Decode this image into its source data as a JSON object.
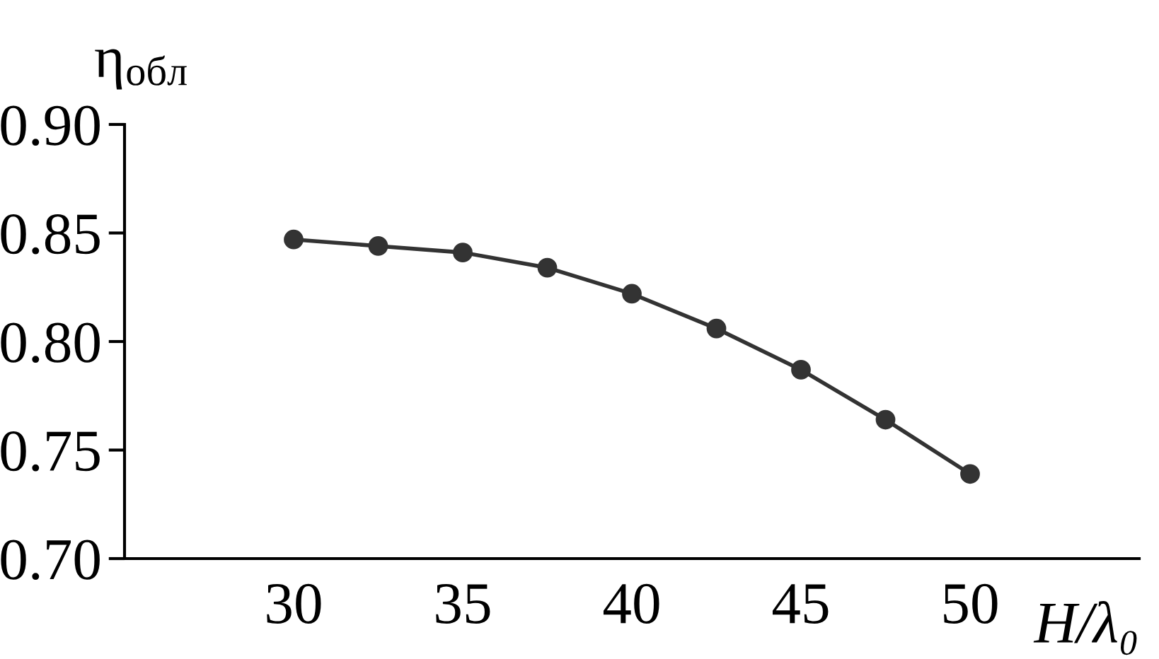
{
  "chart_data": {
    "type": "line",
    "xlabel": "H/λ₀",
    "ylabel": "η$_{обл}$",
    "x": [
      30,
      32.5,
      35,
      37.5,
      40,
      42.5,
      45,
      47.5,
      50
    ],
    "series": [
      {
        "color": "#333333",
        "values": [
          0.847,
          0.844,
          0.841,
          0.834,
          0.822,
          0.806,
          0.787,
          0.764,
          0.739
        ]
      }
    ],
    "xlim": [
      25,
      55
    ],
    "ylim": [
      0.7,
      0.9
    ],
    "xticks": [
      30,
      35,
      40,
      45,
      50
    ],
    "yticks": [
      {
        "value": 0.7,
        "label": "0.70"
      },
      0.75,
      {
        "value": 0.8,
        "label": "0.80"
      },
      0.85,
      {
        "value": 0.9,
        "label": "0.90"
      }
    ],
    "marker": "circle",
    "line_style": "solid",
    "grid": false,
    "legend": false
  }
}
